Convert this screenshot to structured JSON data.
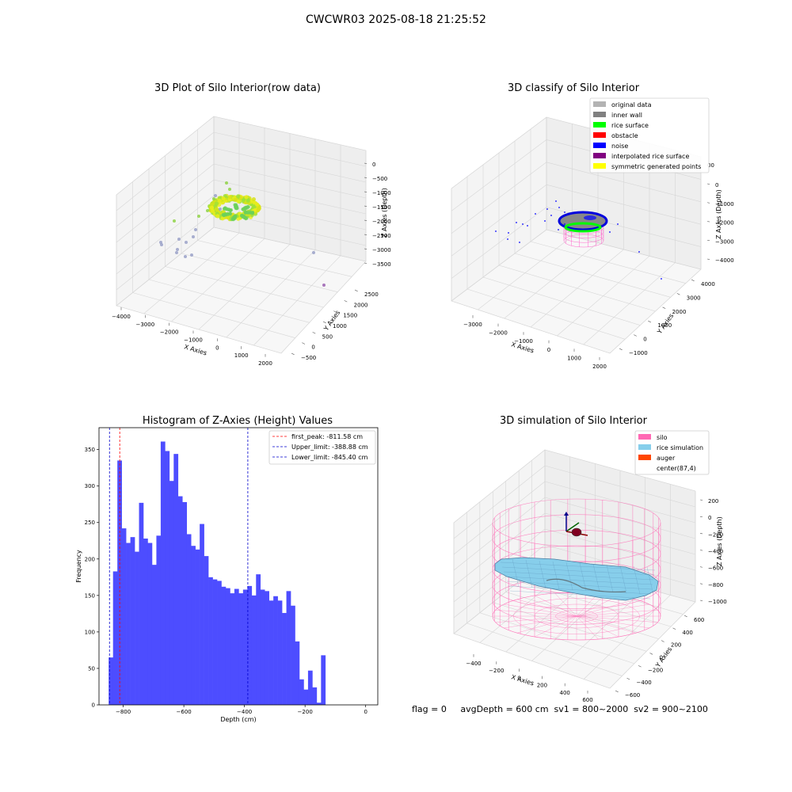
{
  "suptitle": "CWCWR03 2025-08-18 21:25:52",
  "footer": "flag = 0     avgDepth = 600 cm  sv1 = 800~2000  sv2 = 900~2100",
  "chart_data": [
    {
      "type": "scatter3d",
      "title": "3D Plot of Silo Interior(row data)",
      "xlabel": "X Axies",
      "ylabel": "Y Axies",
      "zlabel": "Z Axies (Depth)",
      "x_ticks": [
        "−4000",
        "−3000",
        "−2000",
        "−1000",
        "0",
        "1000",
        "2000"
      ],
      "y_ticks": [
        "−500",
        "0",
        "500",
        "1000",
        "1500",
        "2000",
        "2500"
      ],
      "z_ticks": [
        "0",
        "−500",
        "−1000",
        "−1500",
        "−2000",
        "−2500",
        "−3000",
        "−3500"
      ]
    },
    {
      "type": "scatter3d",
      "title": "3D classify of Silo Interior",
      "xlabel": "X Axies",
      "ylabel": "Y Axies",
      "zlabel": "Z Axies (Depth)",
      "x_ticks": [
        "−3000",
        "−2000",
        "−1000",
        "0",
        "1000",
        "2000"
      ],
      "y_ticks": [
        "−1000",
        "0",
        "1000",
        "2000",
        "3000",
        "4000"
      ],
      "z_ticks": [
        "0",
        "−1000",
        "−2000",
        "−3000",
        "−4000"
      ],
      "z_tick_partial": "00",
      "legend": [
        {
          "label": "original data",
          "color": "#b3b3b3"
        },
        {
          "label": "inner wall",
          "color": "#808080"
        },
        {
          "label": "rice surface",
          "color": "#00ff00"
        },
        {
          "label": "obstacle",
          "color": "#ff0000"
        },
        {
          "label": "noise",
          "color": "#0000ff"
        },
        {
          "label": "interpolated rice surface",
          "color": "#800080"
        },
        {
          "label": "symmetric generated points",
          "color": "#ffff00"
        }
      ]
    },
    {
      "type": "bar",
      "title": "Histogram of Z-Axies (Height) Values",
      "xlabel": "Depth (cm)",
      "ylabel": "Frequency",
      "xlim": [
        -880,
        40
      ],
      "ylim": [
        0,
        380
      ],
      "x_ticks": [
        -800,
        -600,
        -400,
        -200,
        0
      ],
      "x_tick_labels": [
        "−800",
        "−600",
        "−400",
        "−200",
        "0"
      ],
      "y_ticks": [
        0,
        50,
        100,
        150,
        200,
        250,
        300,
        350
      ],
      "bar_color": "#4d4dff",
      "bin_start": -848,
      "bin_width": 14.3,
      "values": [
        65,
        183,
        335,
        242,
        222,
        230,
        210,
        277,
        228,
        222,
        192,
        232,
        361,
        348,
        307,
        344,
        286,
        278,
        234,
        218,
        213,
        248,
        204,
        175,
        172,
        170,
        162,
        160,
        153,
        159,
        153,
        158,
        163,
        150,
        179,
        158,
        156,
        143,
        149,
        143,
        126,
        156,
        136,
        87,
        35,
        21,
        47,
        24,
        3,
        68
      ],
      "vlines": [
        {
          "x": -811.58,
          "label": "first_peak: -811.58 cm",
          "color": "#ff0000"
        },
        {
          "x": -388.88,
          "label": "Upper_limit: -388.88 cm",
          "color": "#0000cc"
        },
        {
          "x": -845.4,
          "label": "Lower_limit: -845.40 cm",
          "color": "#0000cc"
        }
      ]
    },
    {
      "type": "surface3d",
      "title": "3D simulation of Silo Interior",
      "xlabel": "X Axies",
      "ylabel": "Y Axies",
      "zlabel": "Z Axies (Depth)",
      "x_ticks": [
        "−400",
        "−200",
        "0",
        "200",
        "400",
        "600"
      ],
      "y_ticks": [
        "−600",
        "−400",
        "−200",
        "0",
        "200",
        "400",
        "600"
      ],
      "z_ticks": [
        "200",
        "0",
        "−200",
        "−400",
        "−600",
        "−800",
        "−1000"
      ],
      "legend": [
        {
          "label": "silo",
          "color": "#ff69b4"
        },
        {
          "label": "rice simulation",
          "color": "#87ceeb"
        },
        {
          "label": "auger",
          "color": "#ff4500"
        },
        {
          "label": "center(87,4)",
          "color": "#ffffff"
        }
      ]
    }
  ]
}
